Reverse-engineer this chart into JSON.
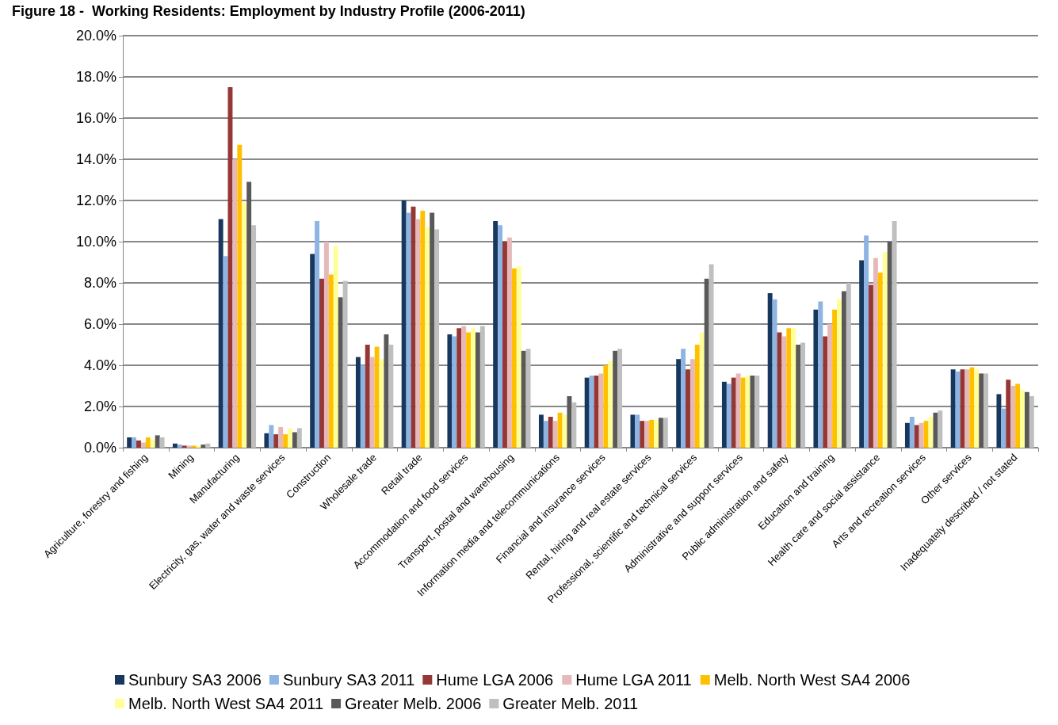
{
  "chart_data": {
    "type": "bar",
    "title": "Figure 18 -  Working Residents: Employment by Industry Profile (2006-2011)",
    "categories": [
      "Agriculture, forestry and fishing",
      "Mining",
      "Manufacturing",
      "Electricity, gas, water and waste services",
      "Construction",
      "Wholesale trade",
      "Retail trade",
      "Accommodation and food services",
      "Transport, postal and warehousing",
      "Information media and telecommunications",
      "Financial and insurance services",
      "Rental, hiring and real estate services",
      "Professional, scientific and technical services",
      "Administrative and support services",
      "Public administration and safety",
      "Education and training",
      "Health care and social assistance",
      "Arts and recreation services",
      "Other services",
      "Inadequately described / not stated"
    ],
    "series": [
      {
        "name": "Sunbury SA3 2006",
        "color": "#17375e",
        "values": [
          0.5,
          0.2,
          11.1,
          0.7,
          9.4,
          4.4,
          12.0,
          5.5,
          11.0,
          1.6,
          3.4,
          1.6,
          4.3,
          3.2,
          7.5,
          6.7,
          9.1,
          1.2,
          3.8,
          2.6
        ]
      },
      {
        "name": "Sunbury SA3 2011",
        "color": "#8db4e2",
        "values": [
          0.5,
          0.15,
          9.3,
          1.1,
          11.0,
          4.0,
          11.4,
          5.4,
          10.8,
          1.3,
          3.5,
          1.6,
          4.8,
          3.1,
          7.2,
          7.1,
          10.3,
          1.5,
          3.7,
          1.9
        ]
      },
      {
        "name": "Hume LGA 2006",
        "color": "#953735",
        "values": [
          0.35,
          0.1,
          17.5,
          0.65,
          8.2,
          5.0,
          11.7,
          5.8,
          10.0,
          1.5,
          3.5,
          1.3,
          3.8,
          3.4,
          5.6,
          5.4,
          7.9,
          1.1,
          3.8,
          3.3
        ]
      },
      {
        "name": "Hume LGA 2011",
        "color": "#e6b9b8",
        "values": [
          0.25,
          0.1,
          14.0,
          1.0,
          10.0,
          4.4,
          11.1,
          5.9,
          10.2,
          1.3,
          3.6,
          1.3,
          4.3,
          3.6,
          5.4,
          6.0,
          9.2,
          1.2,
          3.8,
          3.0
        ]
      },
      {
        "name": "Melb. North West SA4 2006",
        "color": "#ffc000",
        "values": [
          0.5,
          0.1,
          14.7,
          0.65,
          8.4,
          4.9,
          11.5,
          5.6,
          8.7,
          1.7,
          4.0,
          1.35,
          5.0,
          3.4,
          5.8,
          6.7,
          8.5,
          1.3,
          3.9,
          3.1
        ]
      },
      {
        "name": "Melb. North West SA4 2011",
        "color": "#ffff99",
        "values": [
          0.4,
          0.1,
          11.9,
          0.95,
          9.8,
          4.3,
          10.7,
          5.8,
          8.8,
          1.6,
          4.2,
          1.35,
          5.6,
          3.5,
          5.8,
          7.2,
          9.5,
          1.5,
          3.8,
          2.8
        ]
      },
      {
        "name": "Greater Melb. 2006",
        "color": "#595959",
        "values": [
          0.6,
          0.15,
          12.9,
          0.75,
          7.3,
          5.5,
          11.4,
          5.6,
          4.7,
          2.5,
          4.7,
          1.45,
          8.2,
          3.5,
          5.0,
          7.6,
          10.0,
          1.7,
          3.6,
          2.7
        ]
      },
      {
        "name": "Greater Melb. 2011",
        "color": "#bfbfbf",
        "values": [
          0.5,
          0.2,
          10.8,
          0.95,
          8.1,
          5.0,
          10.6,
          5.9,
          4.8,
          2.2,
          4.8,
          1.45,
          8.9,
          3.5,
          5.1,
          8.0,
          11.0,
          1.8,
          3.6,
          2.5
        ]
      }
    ],
    "ylim": [
      0,
      20
    ],
    "yticks": [
      {
        "value": 0,
        "label": "0.0%"
      },
      {
        "value": 2,
        "label": "2.0%"
      },
      {
        "value": 4,
        "label": "4.0%"
      },
      {
        "value": 6,
        "label": "6.0%"
      },
      {
        "value": 8,
        "label": "8.0%"
      },
      {
        "value": 10,
        "label": "10.0%"
      },
      {
        "value": 12,
        "label": "12.0%"
      },
      {
        "value": 14,
        "label": "14.0%"
      },
      {
        "value": 16,
        "label": "16.0%"
      },
      {
        "value": 18,
        "label": "18.0%"
      },
      {
        "value": 20,
        "label": "20.0%"
      }
    ],
    "grid": "y",
    "legend": "bottom"
  }
}
